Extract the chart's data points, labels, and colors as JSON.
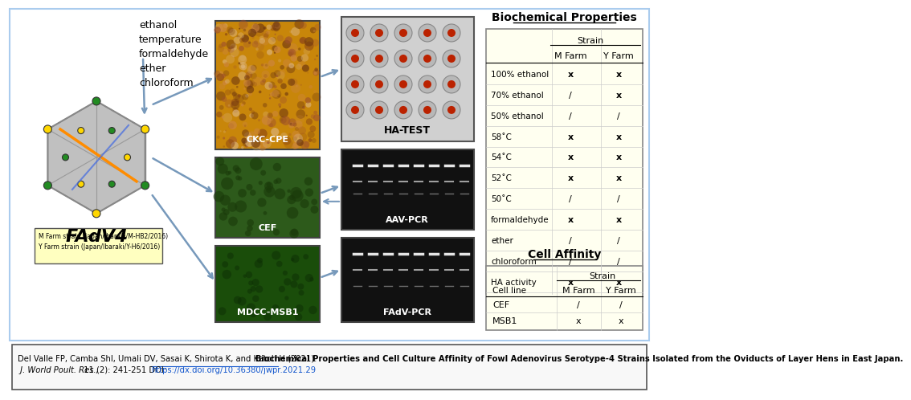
{
  "biochem_title": "Biochemical Properties",
  "biochem_header_strain": "Strain",
  "biochem_col_headers": [
    "M Farm",
    "Y Farm"
  ],
  "biochem_rows": [
    [
      "100% ethanol",
      "x",
      "x"
    ],
    [
      "70% ethanol",
      "/",
      "x"
    ],
    [
      "50% ethanol",
      "/",
      "/"
    ],
    [
      "58˚C",
      "x",
      "x"
    ],
    [
      "54˚C",
      "x",
      "x"
    ],
    [
      "52˚C",
      "x",
      "x"
    ],
    [
      "50˚C",
      "/",
      "/"
    ],
    [
      "formaldehyde",
      "x",
      "x"
    ],
    [
      "ether",
      "/",
      "/"
    ],
    [
      "chloroform",
      "/",
      "/"
    ],
    [
      "HA activity",
      "x",
      "x"
    ]
  ],
  "cell_affinity_title": "Cell Affinity",
  "cell_affinity_header_strain": "Strain",
  "cell_affinity_col_headers": [
    "M Farm",
    "Y Farm"
  ],
  "cell_affinity_row_header": "Cell line",
  "cell_affinity_rows": [
    [
      "CEF",
      "/",
      "/"
    ],
    [
      "MSB1",
      "x",
      "x"
    ]
  ],
  "labels_left": [
    "ethanol",
    "temperature",
    "formaldehyde",
    "ether",
    "chloroform"
  ],
  "label_ckc": "CKC-CPE",
  "label_ha": "HA-TEST",
  "label_cef": "CEF",
  "label_msb1": "MDCC-MSB1",
  "label_aav": "AAV-PCR",
  "label_fadv": "FAdV-PCR",
  "label_fadv4": "FAdV4",
  "strain_m": "M Farm strain (Japan/Ibaraki/M-HB2/2016)",
  "strain_y": "Y Farm strain (Japan/Ibaraki/Y-H6/2016)",
  "citation_normal": "Del Valle FP, Camba ShI, Umali DV, Sasai K, Shirota K, and Katoh H (2021). ",
  "citation_bold": "Biochemical Properties and Cell Culture Affinity of Fowl Adenovirus Serotype-4 Strains Isolated from the Oviducts of Layer Hens in East Japan.",
  "citation_italic": " J. World Poult. Res.,",
  "citation_end": " 11 (2): 241-251 DOI: ",
  "citation_url": "https://dx.doi.org/10.36380/jwpr.2021.29",
  "table_bg": "#fffff0",
  "table_border": "#888888",
  "main_bg": "#ffffff",
  "citation_bg": "#f0f0f0",
  "header_color": "#000080"
}
